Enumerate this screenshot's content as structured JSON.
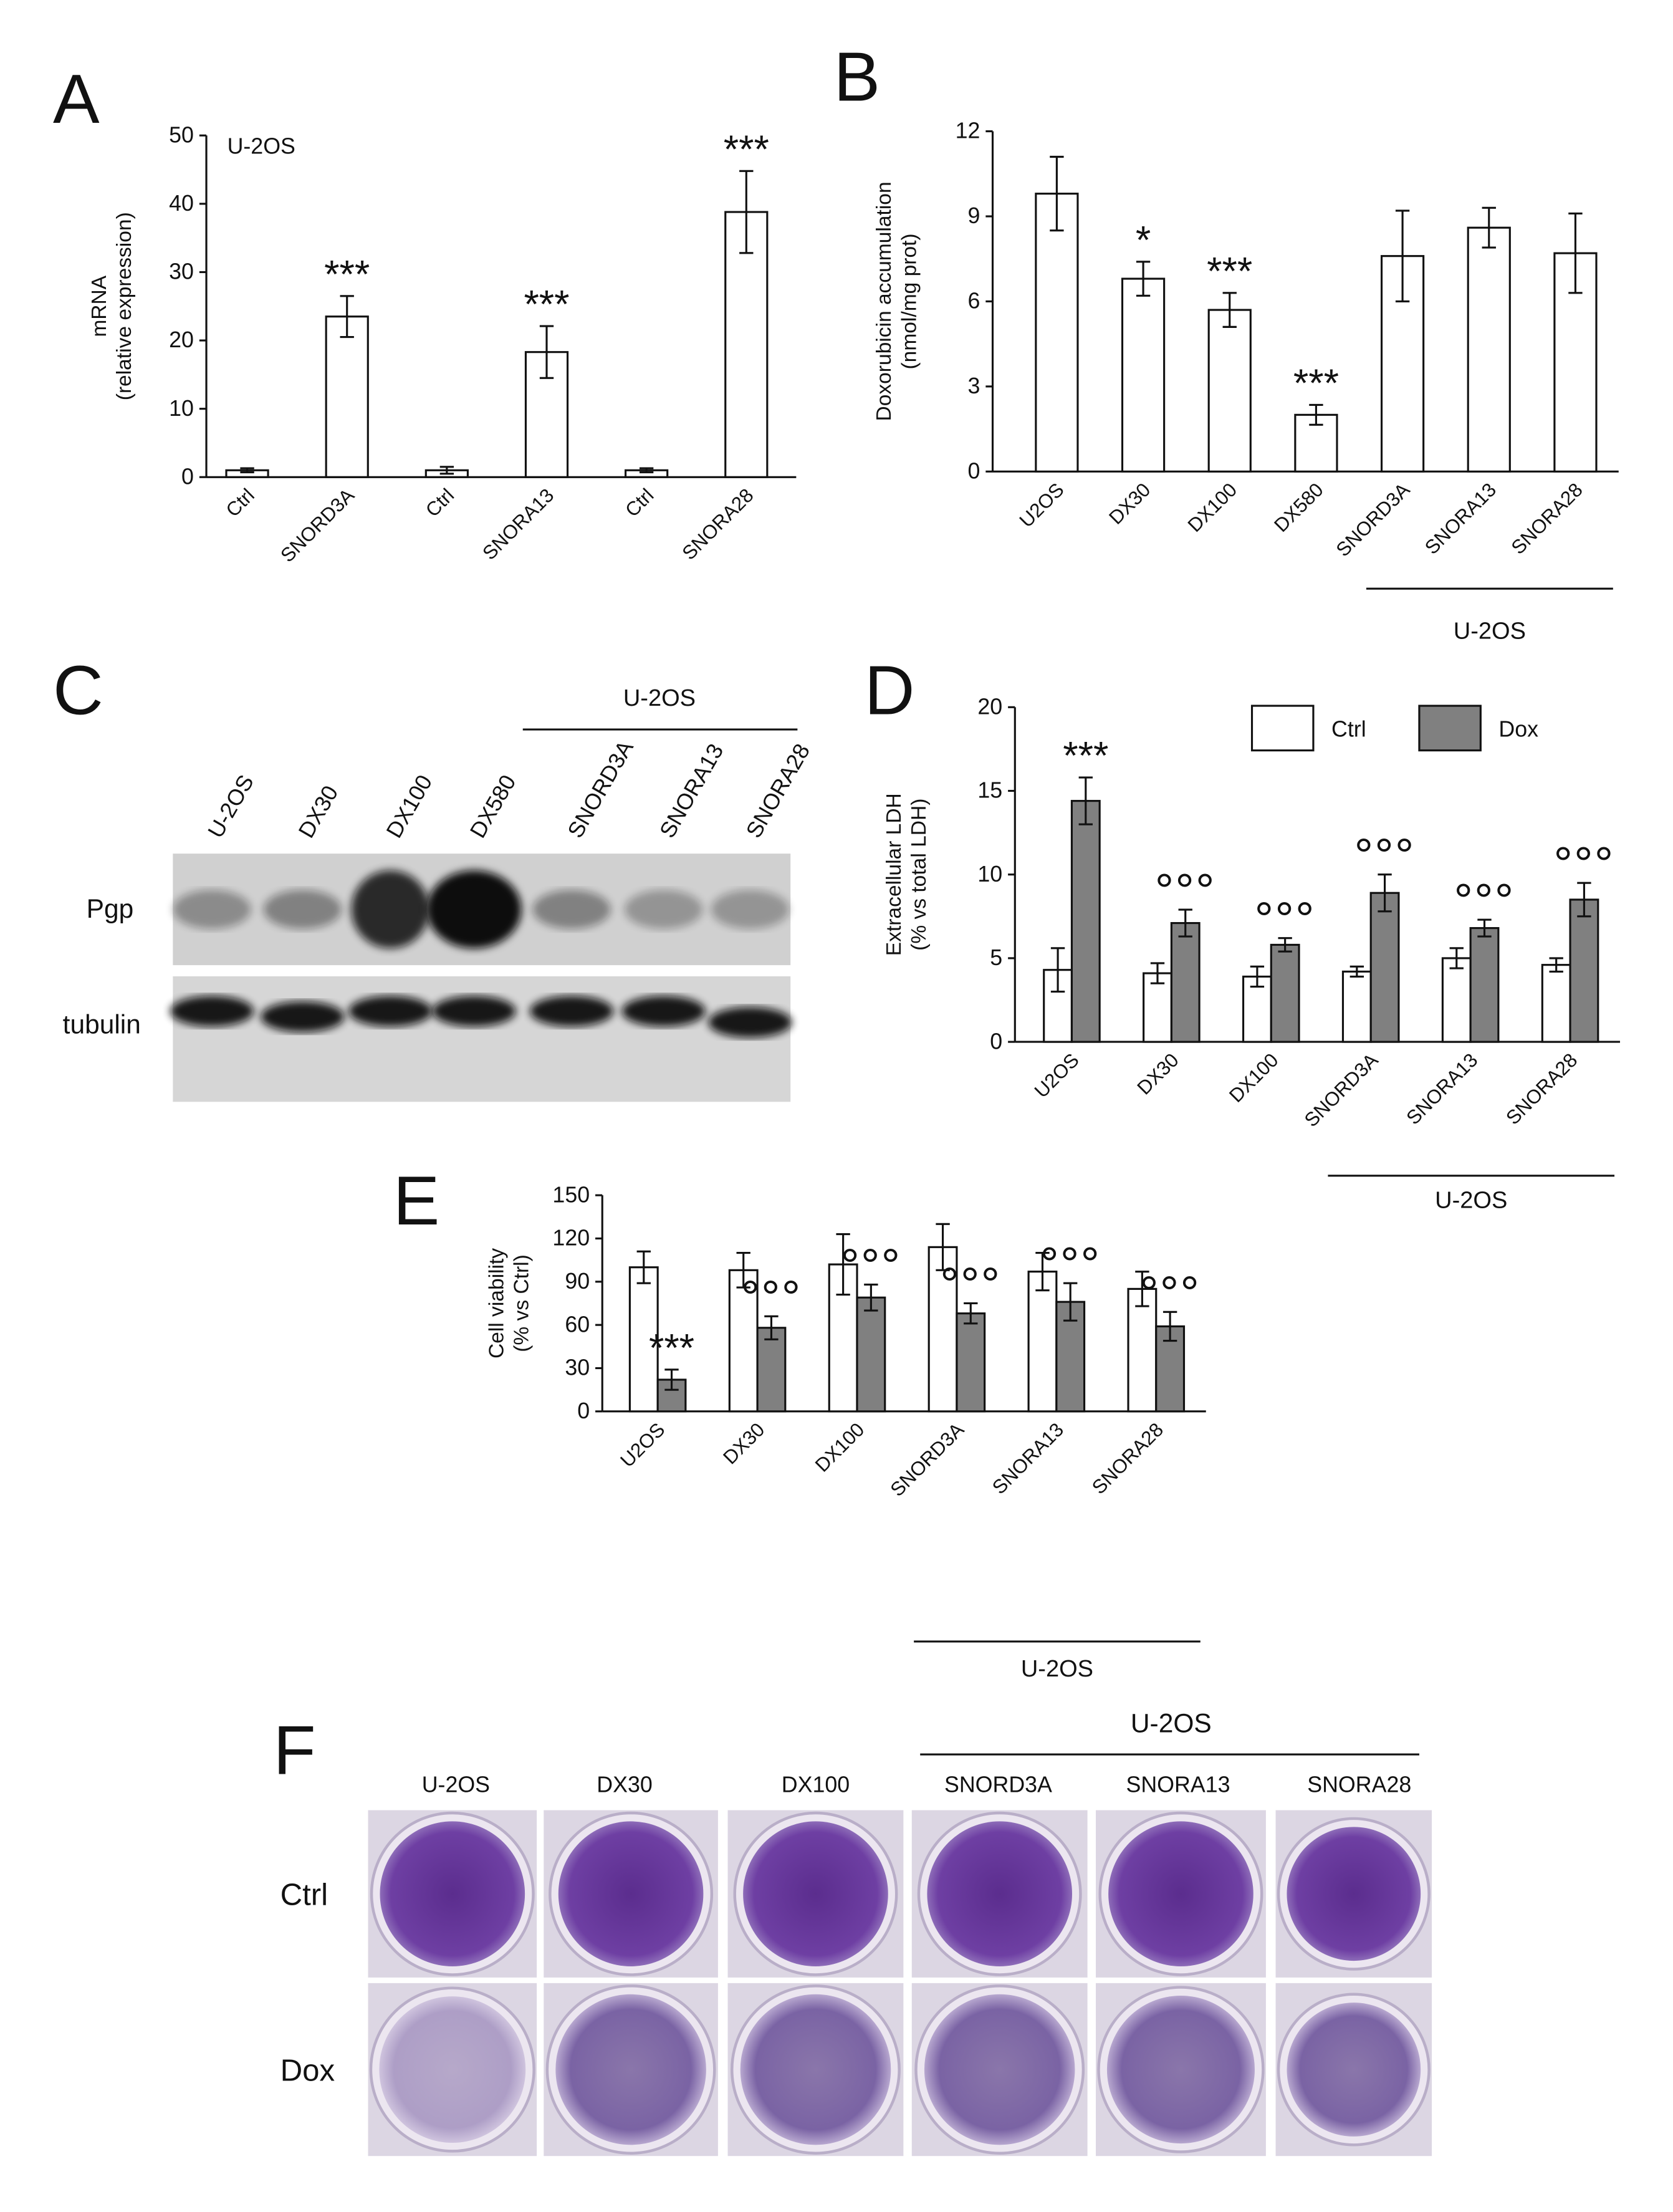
{
  "chart_data": [
    {
      "type": "bar",
      "panel": "A",
      "ylabel": [
        "mRNA",
        "(relative expression)"
      ],
      "note": "U-2OS",
      "categories": [
        "Ctrl",
        "SNORD3A",
        "Ctrl",
        "SNORA13",
        "Ctrl",
        "SNORA28"
      ],
      "values": [
        1,
        23.5,
        1,
        18.3,
        1,
        38.8
      ],
      "errors": [
        0.3,
        3,
        0.5,
        3.8,
        0.3,
        6
      ],
      "annotations": [
        null,
        "***",
        null,
        "***",
        null,
        "***"
      ],
      "color": "#ffffff",
      "ylim": [
        0,
        50
      ],
      "yticks": [
        0,
        10,
        20,
        30,
        40,
        50
      ]
    },
    {
      "type": "bar",
      "panel": "B",
      "ylabel": [
        "Doxorubicin accumulation",
        "(nmol/mg prot)"
      ],
      "group_label": "U-2OS",
      "categories": [
        "U2OS",
        "DX30",
        "DX100",
        "DX580",
        "SNORD3A",
        "SNORA13",
        "SNORA28"
      ],
      "values": [
        9.8,
        6.8,
        5.7,
        2.0,
        7.6,
        8.6,
        7.7
      ],
      "errors": [
        1.3,
        0.6,
        0.6,
        0.35,
        1.6,
        0.7,
        1.4
      ],
      "annotations": [
        null,
        "*",
        "***",
        "***",
        null,
        null,
        null
      ],
      "color": "#ffffff",
      "ylim": [
        0,
        12
      ],
      "yticks": [
        0,
        3,
        6,
        9,
        12
      ]
    },
    {
      "type": "grouped_bar",
      "panel": "D",
      "ylabel": [
        "Extracellular LDH",
        "(% vs total LDH)"
      ],
      "group_label": "U-2OS",
      "categories": [
        "U2OS",
        "DX30",
        "DX100",
        "SNORD3A",
        "SNORA13",
        "SNORA28"
      ],
      "series": [
        {
          "name": "Ctrl",
          "color": "#ffffff",
          "values": [
            4.3,
            4.1,
            3.9,
            4.2,
            5.0,
            4.6
          ],
          "errors": [
            1.3,
            0.6,
            0.6,
            0.3,
            0.6,
            0.4
          ],
          "annotations": [
            null,
            null,
            null,
            null,
            null,
            null
          ]
        },
        {
          "name": "Dox",
          "color": "#808080",
          "values": [
            14.4,
            7.1,
            5.8,
            8.9,
            6.8,
            8.5
          ],
          "errors": [
            1.4,
            0.8,
            0.4,
            1.1,
            0.5,
            1.0
          ],
          "annotations": [
            "***",
            "°°°",
            "°°°",
            "°°°",
            "°°°",
            "°°°"
          ]
        }
      ],
      "ylim": [
        0,
        20
      ],
      "yticks": [
        0,
        5,
        10,
        15,
        20
      ],
      "legend": "top-right"
    },
    {
      "type": "grouped_bar",
      "panel": "E",
      "ylabel": [
        "Cell viability",
        "(% vs Ctrl)"
      ],
      "group_label": "U-2OS",
      "categories": [
        "U2OS",
        "DX30",
        "DX100",
        "SNORD3A",
        "SNORA13",
        "SNORA28"
      ],
      "series": [
        {
          "name": "Ctrl",
          "color": "#ffffff",
          "values": [
            100,
            98,
            102,
            114,
            97,
            85
          ],
          "errors": [
            11,
            12,
            21,
            16,
            13,
            12
          ],
          "annotations": [
            null,
            null,
            null,
            null,
            null,
            null
          ]
        },
        {
          "name": "Dox",
          "color": "#808080",
          "values": [
            22,
            58,
            79,
            68,
            76,
            59
          ],
          "errors": [
            7,
            8,
            9,
            7,
            13,
            10
          ],
          "annotations": [
            "***",
            "°°°",
            "°°°",
            "°°°",
            "°°°",
            "°°°"
          ]
        }
      ],
      "ylim": [
        0,
        150
      ],
      "yticks": [
        0,
        30,
        60,
        90,
        120,
        150
      ]
    }
  ],
  "blot": {
    "panel": "C",
    "group_label": "U-2OS",
    "lanes": [
      "U-2OS",
      "DX30",
      "DX100",
      "DX580",
      "SNORD3A",
      "SNORA13",
      "SNORA28"
    ],
    "rows": [
      "Pgp",
      "tubulin"
    ]
  },
  "wells": {
    "panel": "F",
    "group_label": "U-2OS",
    "columns": [
      "U-2OS",
      "DX30",
      "DX100",
      "SNORD3A",
      "SNORA13",
      "SNORA28"
    ],
    "rows": [
      "Ctrl",
      "Dox"
    ]
  }
}
